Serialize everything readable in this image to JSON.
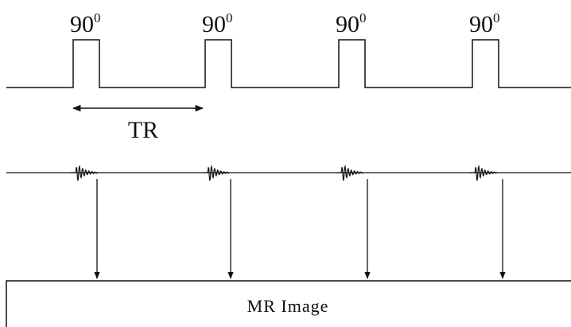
{
  "pulses": [
    {
      "angle": "90",
      "degree": "0"
    },
    {
      "angle": "90",
      "degree": "0"
    },
    {
      "angle": "90",
      "degree": "0"
    },
    {
      "angle": "90",
      "degree": "0"
    }
  ],
  "tr_label": "TR",
  "output_label": "MR Image"
}
